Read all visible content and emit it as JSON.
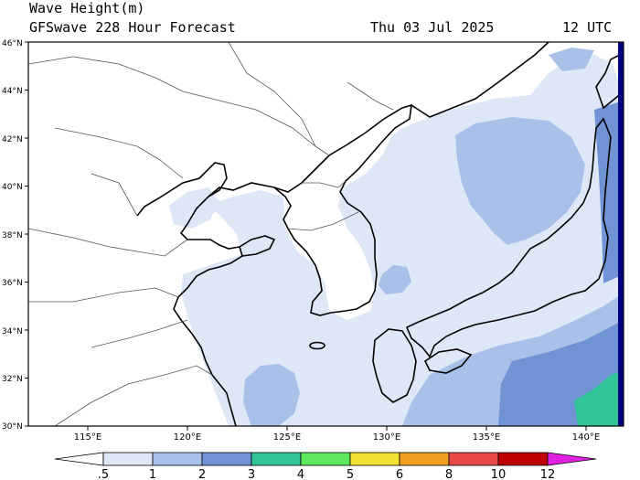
{
  "header": {
    "title": "Wave Height(m)",
    "subtitle": "GFSwave 228 Hour Forecast",
    "date": "Thu 03 Jul 2025",
    "time": "12 UTC"
  },
  "axes": {
    "lon_labels": [
      "115°E",
      "120°E",
      "125°E",
      "130°E",
      "135°E",
      "140°E"
    ],
    "lat_labels": [
      "46°N",
      "44°N",
      "42°N",
      "40°N",
      "38°N",
      "36°N",
      "34°N",
      "32°N",
      "30°N"
    ]
  },
  "colorbar": {
    "labels": [
      ".5",
      "1",
      "2",
      "3",
      "4",
      "5",
      "6",
      "8",
      "10",
      "12"
    ],
    "colors": [
      "#ffffff",
      "#dde7f6",
      "#a9c0e8",
      "#6f93d4",
      "#33c49a",
      "#5ee85e",
      "#f0e030",
      "#f0a020",
      "#e84848",
      "#c00000",
      "#e020e0"
    ]
  },
  "chart_data": {
    "type": "heatmap",
    "title": "Wave Height(m)",
    "lon_range": [
      112,
      142
    ],
    "lat_range": [
      30,
      46
    ],
    "levels": [
      0.5,
      1,
      2,
      3,
      4,
      5,
      6,
      8,
      10,
      12
    ]
  }
}
